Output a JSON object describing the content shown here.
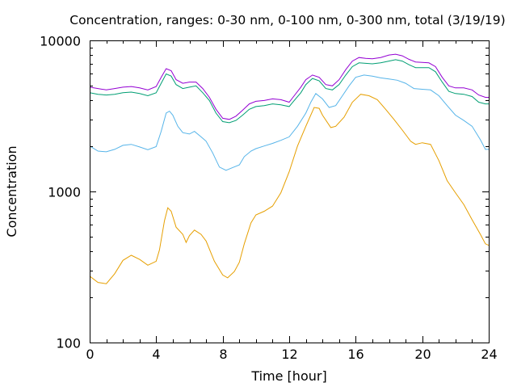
{
  "chart_data": {
    "type": "line",
    "title": "Concentration, ranges: 0-30 nm, 0-100 nm, 0-300 nm, total (3/19/19)",
    "xlabel": "Time [hour]",
    "ylabel": "Concentration",
    "xlim": [
      0,
      24
    ],
    "ylim": [
      100,
      10000
    ],
    "yscale": "log",
    "grid": false,
    "legend": "none",
    "x_ticks": [
      "0",
      "4",
      "8",
      "12",
      "16",
      "20",
      "24"
    ],
    "y_ticks": [
      "100",
      "1000",
      "10000"
    ],
    "series": [
      {
        "color": "#e69f00",
        "points": [
          [
            0,
            275
          ],
          [
            0.5,
            250
          ],
          [
            1,
            245
          ],
          [
            1.5,
            285
          ],
          [
            2,
            350
          ],
          [
            2.5,
            378
          ],
          [
            3,
            355
          ],
          [
            3.5,
            325
          ],
          [
            4,
            345
          ],
          [
            4.2,
            410
          ],
          [
            4.5,
            640
          ],
          [
            4.7,
            780
          ],
          [
            4.9,
            740
          ],
          [
            5.2,
            580
          ],
          [
            5.6,
            520
          ],
          [
            5.8,
            460
          ],
          [
            6,
            510
          ],
          [
            6.3,
            555
          ],
          [
            6.7,
            520
          ],
          [
            7,
            470
          ],
          [
            7.5,
            345
          ],
          [
            8,
            280
          ],
          [
            8.3,
            268
          ],
          [
            8.7,
            295
          ],
          [
            9,
            340
          ],
          [
            9.3,
            450
          ],
          [
            9.7,
            620
          ],
          [
            10,
            700
          ],
          [
            10.5,
            740
          ],
          [
            11,
            800
          ],
          [
            11.5,
            980
          ],
          [
            12,
            1350
          ],
          [
            12.5,
            2000
          ],
          [
            13,
            2700
          ],
          [
            13.5,
            3600
          ],
          [
            13.8,
            3550
          ],
          [
            14,
            3200
          ],
          [
            14.5,
            2650
          ],
          [
            14.8,
            2700
          ],
          [
            15.3,
            3100
          ],
          [
            15.8,
            3900
          ],
          [
            16.3,
            4400
          ],
          [
            16.8,
            4300
          ],
          [
            17.3,
            4050
          ],
          [
            17.8,
            3500
          ],
          [
            18.3,
            3000
          ],
          [
            18.8,
            2550
          ],
          [
            19.3,
            2150
          ],
          [
            19.6,
            2050
          ],
          [
            20,
            2100
          ],
          [
            20.5,
            2050
          ],
          [
            21,
            1600
          ],
          [
            21.5,
            1180
          ],
          [
            22,
            980
          ],
          [
            22.5,
            820
          ],
          [
            23,
            650
          ],
          [
            23.5,
            520
          ],
          [
            23.8,
            450
          ],
          [
            24,
            440
          ]
        ]
      },
      {
        "color": "#56b4e9",
        "points": [
          [
            0,
            2000
          ],
          [
            0.5,
            1850
          ],
          [
            1,
            1830
          ],
          [
            1.5,
            1900
          ],
          [
            2,
            2020
          ],
          [
            2.5,
            2050
          ],
          [
            3,
            1970
          ],
          [
            3.5,
            1890
          ],
          [
            4,
            1980
          ],
          [
            4.3,
            2500
          ],
          [
            4.6,
            3300
          ],
          [
            4.8,
            3400
          ],
          [
            5,
            3200
          ],
          [
            5.3,
            2700
          ],
          [
            5.6,
            2450
          ],
          [
            6,
            2400
          ],
          [
            6.3,
            2500
          ],
          [
            6.7,
            2300
          ],
          [
            7,
            2150
          ],
          [
            7.4,
            1800
          ],
          [
            7.8,
            1450
          ],
          [
            8.2,
            1380
          ],
          [
            8.6,
            1440
          ],
          [
            9,
            1500
          ],
          [
            9.3,
            1700
          ],
          [
            9.7,
            1850
          ],
          [
            10,
            1920
          ],
          [
            10.5,
            2000
          ],
          [
            11,
            2080
          ],
          [
            11.5,
            2180
          ],
          [
            12,
            2300
          ],
          [
            12.5,
            2700
          ],
          [
            13,
            3300
          ],
          [
            13.3,
            3900
          ],
          [
            13.6,
            4450
          ],
          [
            14,
            4100
          ],
          [
            14.4,
            3600
          ],
          [
            14.8,
            3700
          ],
          [
            15.2,
            4300
          ],
          [
            15.6,
            5000
          ],
          [
            16,
            5700
          ],
          [
            16.5,
            5900
          ],
          [
            17,
            5800
          ],
          [
            17.5,
            5650
          ],
          [
            18,
            5550
          ],
          [
            18.5,
            5450
          ],
          [
            19,
            5200
          ],
          [
            19.5,
            4800
          ],
          [
            20,
            4750
          ],
          [
            20.5,
            4700
          ],
          [
            21,
            4300
          ],
          [
            21.5,
            3700
          ],
          [
            22,
            3200
          ],
          [
            22.5,
            2950
          ],
          [
            23,
            2700
          ],
          [
            23.5,
            2200
          ],
          [
            23.8,
            1900
          ],
          [
            24,
            1900
          ]
        ]
      },
      {
        "color": "#009e73",
        "points": [
          [
            0,
            4500
          ],
          [
            0.5,
            4400
          ],
          [
            1,
            4350
          ],
          [
            1.5,
            4400
          ],
          [
            2,
            4500
          ],
          [
            2.5,
            4550
          ],
          [
            3,
            4450
          ],
          [
            3.5,
            4300
          ],
          [
            4,
            4500
          ],
          [
            4.3,
            5200
          ],
          [
            4.6,
            6000
          ],
          [
            4.9,
            5800
          ],
          [
            5.2,
            5100
          ],
          [
            5.6,
            4800
          ],
          [
            6,
            4900
          ],
          [
            6.4,
            5000
          ],
          [
            6.8,
            4500
          ],
          [
            7.2,
            4000
          ],
          [
            7.6,
            3300
          ],
          [
            8,
            2900
          ],
          [
            8.4,
            2850
          ],
          [
            8.8,
            2950
          ],
          [
            9.2,
            3200
          ],
          [
            9.6,
            3500
          ],
          [
            10,
            3650
          ],
          [
            10.5,
            3700
          ],
          [
            11,
            3800
          ],
          [
            11.5,
            3750
          ],
          [
            12,
            3650
          ],
          [
            12.3,
            4000
          ],
          [
            12.7,
            4500
          ],
          [
            13,
            5100
          ],
          [
            13.4,
            5600
          ],
          [
            13.8,
            5400
          ],
          [
            14.2,
            4800
          ],
          [
            14.6,
            4700
          ],
          [
            15,
            5100
          ],
          [
            15.4,
            5900
          ],
          [
            15.8,
            6700
          ],
          [
            16.2,
            7100
          ],
          [
            16.6,
            7050
          ],
          [
            17,
            7000
          ],
          [
            17.5,
            7100
          ],
          [
            18,
            7300
          ],
          [
            18.4,
            7450
          ],
          [
            18.8,
            7300
          ],
          [
            19.2,
            6900
          ],
          [
            19.6,
            6600
          ],
          [
            20,
            6600
          ],
          [
            20.4,
            6600
          ],
          [
            20.8,
            6200
          ],
          [
            21.2,
            5300
          ],
          [
            21.6,
            4600
          ],
          [
            22,
            4450
          ],
          [
            22.5,
            4400
          ],
          [
            23,
            4250
          ],
          [
            23.4,
            3900
          ],
          [
            23.8,
            3800
          ],
          [
            24,
            3800
          ]
        ]
      },
      {
        "color": "#9400d3",
        "points": [
          [
            0,
            4900
          ],
          [
            0.5,
            4800
          ],
          [
            1,
            4700
          ],
          [
            1.5,
            4800
          ],
          [
            2,
            4900
          ],
          [
            2.5,
            4950
          ],
          [
            3,
            4850
          ],
          [
            3.5,
            4700
          ],
          [
            4,
            4950
          ],
          [
            4.3,
            5700
          ],
          [
            4.6,
            6500
          ],
          [
            4.9,
            6300
          ],
          [
            5.2,
            5500
          ],
          [
            5.6,
            5200
          ],
          [
            6,
            5300
          ],
          [
            6.4,
            5300
          ],
          [
            6.8,
            4800
          ],
          [
            7.2,
            4200
          ],
          [
            7.6,
            3500
          ],
          [
            8,
            3050
          ],
          [
            8.4,
            3000
          ],
          [
            8.8,
            3150
          ],
          [
            9.2,
            3450
          ],
          [
            9.6,
            3800
          ],
          [
            10,
            3950
          ],
          [
            10.5,
            4000
          ],
          [
            11,
            4100
          ],
          [
            11.5,
            4050
          ],
          [
            12,
            3900
          ],
          [
            12.3,
            4300
          ],
          [
            12.7,
            4900
          ],
          [
            13,
            5500
          ],
          [
            13.4,
            5900
          ],
          [
            13.8,
            5700
          ],
          [
            14.2,
            5100
          ],
          [
            14.6,
            5000
          ],
          [
            15,
            5500
          ],
          [
            15.4,
            6400
          ],
          [
            15.8,
            7300
          ],
          [
            16.2,
            7700
          ],
          [
            16.6,
            7600
          ],
          [
            17,
            7550
          ],
          [
            17.5,
            7700
          ],
          [
            18,
            8000
          ],
          [
            18.4,
            8100
          ],
          [
            18.8,
            7900
          ],
          [
            19.2,
            7500
          ],
          [
            19.6,
            7200
          ],
          [
            20,
            7150
          ],
          [
            20.4,
            7100
          ],
          [
            20.8,
            6700
          ],
          [
            21.2,
            5700
          ],
          [
            21.6,
            5000
          ],
          [
            22,
            4850
          ],
          [
            22.5,
            4850
          ],
          [
            23,
            4700
          ],
          [
            23.4,
            4350
          ],
          [
            23.8,
            4200
          ],
          [
            24,
            4200
          ]
        ]
      }
    ]
  }
}
